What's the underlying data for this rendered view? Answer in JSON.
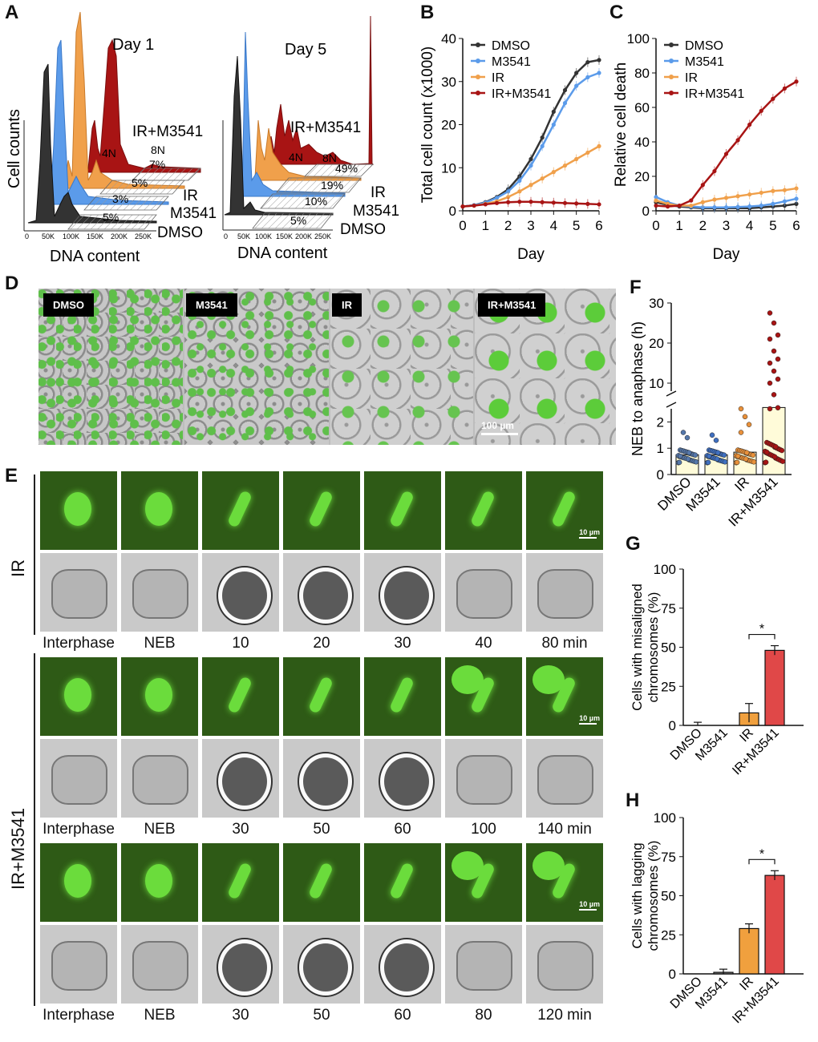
{
  "panel_letters": [
    "A",
    "B",
    "C",
    "D",
    "E",
    "F",
    "G",
    "H"
  ],
  "panelA": {
    "ylabel": "Cell counts",
    "xlabel": "DNA content",
    "ticks": [
      "0",
      "50K",
      "100K",
      "150K",
      "200K",
      "250K"
    ],
    "day1": {
      "title": "Day 1",
      "series": [
        "IR+M3541",
        "IR",
        "M3541",
        "DMSO"
      ],
      "pcts": [
        "7%",
        "5%",
        "3%",
        "5%"
      ],
      "peak_labels": [
        "4N",
        "8N"
      ]
    },
    "day5": {
      "title": "Day 5",
      "series": [
        "IR+M3541",
        "IR",
        "M3541",
        "DMSO"
      ],
      "pcts": [
        "49%",
        "19%",
        "10%",
        "5%"
      ],
      "peak_labels": [
        "4N",
        "8N"
      ]
    }
  },
  "colors": {
    "DMSO": "#333333",
    "M3541": "#5b9bea",
    "IR": "#f0a04b",
    "IR+M3541": "#a81414"
  },
  "chart_data": [
    {
      "type": "line",
      "id": "B",
      "xlabel": "Day",
      "ylabel": "Total cell count (x1000)",
      "xlim": [
        0,
        6
      ],
      "ylim": [
        0,
        40
      ],
      "xticks": [
        "0",
        "1",
        "2",
        "3",
        "4",
        "5",
        "6"
      ],
      "yticks": [
        "0",
        "10",
        "20",
        "30",
        "40"
      ],
      "legend": "top-left",
      "series": [
        {
          "name": "DMSO",
          "x": [
            0,
            0.5,
            1,
            1.5,
            2,
            2.5,
            3,
            3.5,
            4,
            4.5,
            5,
            5.5,
            6
          ],
          "y": [
            1,
            1.3,
            2,
            3.2,
            5,
            8,
            12,
            17,
            23,
            28,
            32,
            34.5,
            35
          ]
        },
        {
          "name": "M3541",
          "x": [
            0,
            0.5,
            1,
            1.5,
            2,
            2.5,
            3,
            3.5,
            4,
            4.5,
            5,
            5.5,
            6
          ],
          "y": [
            1,
            1.3,
            1.9,
            3,
            4.5,
            7,
            10.5,
            15,
            20,
            25,
            29,
            31,
            32
          ]
        },
        {
          "name": "IR",
          "x": [
            0,
            0.5,
            1,
            1.5,
            2,
            2.5,
            3,
            3.5,
            4,
            4.5,
            5,
            5.5,
            6
          ],
          "y": [
            1,
            1.2,
            1.6,
            2.2,
            3.2,
            4.5,
            6,
            7.5,
            9,
            10.5,
            12,
            13.5,
            15
          ]
        },
        {
          "name": "IR+M3541",
          "x": [
            0,
            0.5,
            1,
            1.5,
            2,
            2.5,
            3,
            3.5,
            4,
            4.5,
            5,
            5.5,
            6
          ],
          "y": [
            1,
            1.2,
            1.5,
            1.8,
            2,
            2.1,
            2.1,
            2,
            1.9,
            1.8,
            1.7,
            1.6,
            1.5
          ]
        }
      ]
    },
    {
      "type": "line",
      "id": "C",
      "xlabel": "Day",
      "ylabel": "Relative cell death",
      "xlim": [
        0,
        6
      ],
      "ylim": [
        0,
        100
      ],
      "xticks": [
        "0",
        "1",
        "2",
        "3",
        "4",
        "5",
        "6"
      ],
      "yticks": [
        "0",
        "20",
        "40",
        "60",
        "80",
        "100"
      ],
      "legend": "top-left",
      "series": [
        {
          "name": "DMSO",
          "x": [
            0,
            0.5,
            1,
            1.5,
            2,
            2.5,
            3,
            3.5,
            4,
            4.5,
            5,
            5.5,
            6
          ],
          "y": [
            5,
            3.5,
            2.5,
            2,
            1.5,
            1.5,
            1.5,
            1.5,
            1.5,
            2,
            2.5,
            3,
            4
          ]
        },
        {
          "name": "M3541",
          "x": [
            0,
            0.5,
            1,
            1.5,
            2,
            2.5,
            3,
            3.5,
            4,
            4.5,
            5,
            5.5,
            6
          ],
          "y": [
            8,
            5,
            3,
            2.5,
            2,
            2,
            2,
            2.2,
            2.5,
            3,
            4,
            5.5,
            7
          ]
        },
        {
          "name": "IR",
          "x": [
            0,
            0.5,
            1,
            1.5,
            2,
            2.5,
            3,
            3.5,
            4,
            4.5,
            5,
            5.5,
            6
          ],
          "y": [
            6,
            4,
            3,
            3,
            5,
            6.5,
            7.5,
            8.5,
            9.5,
            10.5,
            11.5,
            12,
            13
          ]
        },
        {
          "name": "IR+M3541",
          "x": [
            0,
            0.5,
            1,
            1.5,
            2,
            2.5,
            3,
            3.5,
            4,
            4.5,
            5,
            5.5,
            6
          ],
          "y": [
            3,
            2.5,
            3,
            6,
            15,
            23,
            33,
            41,
            50,
            58,
            65,
            71,
            75
          ]
        }
      ]
    },
    {
      "type": "scatter",
      "id": "F",
      "ylabel": "NEB to anaphase (h)",
      "categories": [
        "DMSO",
        "M3541",
        "IR",
        "IR+M3541"
      ],
      "yticks_lower": [
        "0",
        "1",
        "2"
      ],
      "yticks_upper": [
        "10",
        "20",
        "30"
      ],
      "means": [
        0.75,
        0.75,
        0.85,
        3.0
      ],
      "outliers": [
        [
          1.6,
          1.4
        ],
        [
          1.5,
          1.3
        ],
        [
          2.5,
          2.2,
          1.9,
          1.6
        ],
        [
          27.5,
          25,
          22,
          21,
          18,
          16,
          15,
          13,
          11,
          10,
          8,
          2.9,
          2.5
        ]
      ]
    },
    {
      "type": "bar",
      "id": "G",
      "ylabel": "Cells with misaligned chromosomes (%)",
      "categories": [
        "DMSO",
        "M3541",
        "IR",
        "IR+M3541"
      ],
      "values": [
        0,
        0,
        8,
        48
      ],
      "errors": [
        2,
        0,
        6,
        3
      ],
      "ylim": [
        0,
        100
      ],
      "yticks": [
        "0",
        "25",
        "50",
        "75",
        "100"
      ],
      "significance": "*"
    },
    {
      "type": "bar",
      "id": "H",
      "ylabel": "Cells with lagging chromosomes (%)",
      "categories": [
        "DMSO",
        "M3541",
        "IR",
        "IR+M3541"
      ],
      "values": [
        0,
        1,
        29,
        63
      ],
      "errors": [
        0,
        2,
        3,
        3
      ],
      "ylim": [
        0,
        100
      ],
      "yticks": [
        "0",
        "25",
        "50",
        "75",
        "100"
      ],
      "significance": "*"
    }
  ],
  "panelD": {
    "tags": [
      "DMSO",
      "M3541",
      "IR",
      "IR+M3541"
    ],
    "scale": "100 µm"
  },
  "panelE": {
    "rows": [
      "IR",
      "IR+M3541"
    ],
    "scale": "10 µm",
    "times_ir": [
      "Interphase",
      "NEB",
      "10",
      "20",
      "30",
      "40",
      "80 min"
    ],
    "times_combo1": [
      "Interphase",
      "NEB",
      "30",
      "50",
      "60",
      "100",
      "140 min"
    ],
    "times_combo2": [
      "Interphase",
      "NEB",
      "30",
      "50",
      "60",
      "80",
      "120 min"
    ]
  }
}
